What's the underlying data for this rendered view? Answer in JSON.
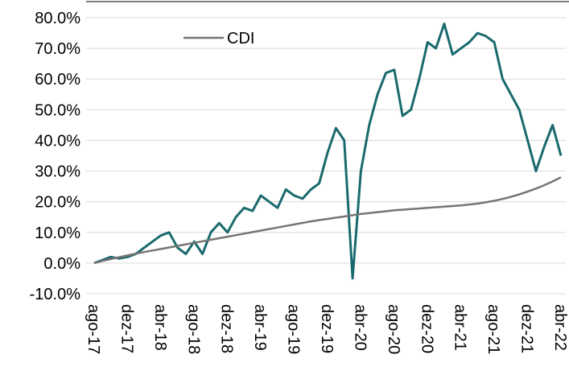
{
  "chart_data": {
    "type": "line",
    "categories": [
      "ago-17",
      null,
      null,
      null,
      "dez-17",
      null,
      null,
      null,
      "abr-18",
      null,
      null,
      null,
      "ago-18",
      null,
      null,
      null,
      "dez-18",
      null,
      null,
      null,
      "abr-19",
      null,
      null,
      null,
      "ago-19",
      null,
      null,
      null,
      "dez-19",
      null,
      null,
      null,
      "abr-20",
      null,
      null,
      null,
      "ago-20",
      null,
      null,
      null,
      "dez-20",
      null,
      null,
      null,
      "abr-21",
      null,
      null,
      null,
      "ago-21",
      null,
      null,
      null,
      "dez-21",
      null,
      null,
      null,
      "abr-22"
    ],
    "series": [
      {
        "color": "#1a6a6d",
        "values": [
          0,
          1,
          2,
          1.5,
          2,
          3,
          5,
          7,
          9,
          10,
          5,
          3,
          7,
          3,
          10,
          13,
          10,
          15,
          18,
          17,
          22,
          20,
          18,
          24,
          22,
          21,
          24,
          26,
          36,
          44,
          40,
          -5,
          30,
          45,
          55,
          62,
          63,
          48,
          50,
          60,
          72,
          70,
          78,
          68,
          70,
          72,
          75,
          74,
          72,
          60,
          55,
          50,
          40,
          30,
          38,
          45,
          35
        ]
      },
      {
        "name": "CDI",
        "color": "#757575",
        "values": [
          0,
          0.7,
          1.3,
          1.9,
          2.5,
          3.1,
          3.6,
          4.1,
          4.6,
          5.1,
          5.6,
          6.1,
          6.6,
          7.1,
          7.6,
          8.1,
          8.6,
          9.1,
          9.6,
          10.1,
          10.6,
          11.1,
          11.6,
          12.1,
          12.6,
          13.1,
          13.6,
          14.0,
          14.4,
          14.8,
          15.2,
          15.6,
          16.0,
          16.3,
          16.6,
          16.9,
          17.2,
          17.4,
          17.6,
          17.8,
          18.0,
          18.2,
          18.4,
          18.6,
          18.8,
          19.1,
          19.4,
          19.8,
          20.3,
          20.9,
          21.6,
          22.4,
          23.3,
          24.3,
          25.4,
          26.6,
          28.0
        ]
      }
    ],
    "ylim": [
      -10,
      80
    ],
    "yticks": [
      {
        "value": -10,
        "label": "-10.0%"
      },
      {
        "value": 0,
        "label": "0.0%"
      },
      {
        "value": 10,
        "label": "10.0%"
      },
      {
        "value": 20,
        "label": "20.0%"
      },
      {
        "value": 30,
        "label": "30.0%"
      },
      {
        "value": 40,
        "label": "40.0%"
      },
      {
        "value": 50,
        "label": "50.0%"
      },
      {
        "value": 60,
        "label": "60.0%"
      },
      {
        "value": 70,
        "label": "70.0%"
      },
      {
        "value": 80,
        "label": "80.0%"
      }
    ],
    "grid": true,
    "legend": "top-left"
  }
}
